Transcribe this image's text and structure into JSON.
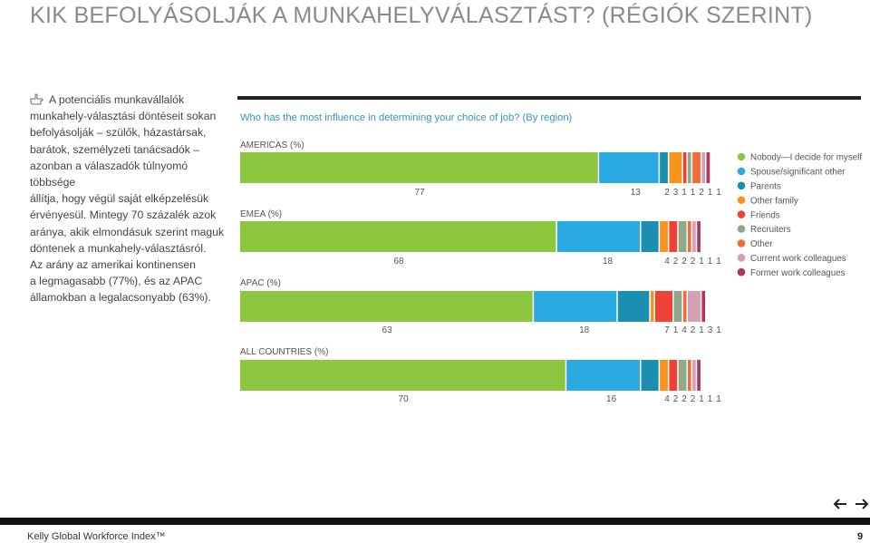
{
  "page": {
    "title": "KIK BEFOLYÁSOLJÁK A MUNKAHELYVÁLASZTÁST? (RÉGIÓK SZERINT)",
    "intro_lines": [
      "A potenciális munkavállalók",
      "munkahely-választási döntéseit sokan",
      "befolyásolják – szülők, házastársak,",
      "barátok, személyzeti tanácsadók –",
      "azonban a válaszadók túlnyomó többsége",
      "állítja, hogy végül saját elképzelésük",
      "érvényesül. Mintegy 70 százalék azok",
      "aránya, akik elmondásuk szerint maguk",
      "döntenek a munkahely-választásról.",
      "Az arány az amerikai kontinensen",
      "a legmagasabb (77%), és az APAC",
      "államokban a legalacsonyabb (63%)."
    ],
    "hand_icon": "pointing-hand-icon"
  },
  "footer": {
    "brand": "Kelly Global Workforce Index™",
    "page_number": "9",
    "prev_icon": "arrow-left-icon",
    "next_icon": "arrow-right-icon"
  },
  "chart_data": {
    "type": "bar",
    "orientation": "horizontal-stacked",
    "title": "Who has the most influence in determining your choice of job? (By region)",
    "title_color": "#3a8fc8",
    "categories": [
      "AMERICAS (%)",
      "EMEA (%)",
      "APAC (%)",
      "ALL COUNTRIES (%)"
    ],
    "series": [
      {
        "name": "Nobody—I decide for myself",
        "color": "#8dc63f",
        "values": [
          77,
          68,
          63,
          70
        ]
      },
      {
        "name": "Spouse/significant other",
        "color": "#29abe2",
        "values": [
          13,
          18,
          18,
          16
        ]
      },
      {
        "name": "Parents",
        "color": "#1b8fb0",
        "values": [
          2,
          4,
          7,
          4
        ]
      },
      {
        "name": "Other family",
        "color": "#f7941d",
        "values": [
          3,
          2,
          1,
          2
        ]
      },
      {
        "name": "Friends",
        "color": "#ef4136",
        "values": [
          1,
          2,
          4,
          2
        ]
      },
      {
        "name": "Recruiters",
        "color": "#8fa88c",
        "values": [
          1,
          2,
          2,
          2
        ]
      },
      {
        "name": "Other",
        "color": "#f26b3a",
        "values": [
          2,
          1,
          1,
          1
        ]
      },
      {
        "name": "Current work colleagues",
        "color": "#d4a0b4",
        "values": [
          1,
          1,
          3,
          1
        ]
      },
      {
        "name": "Former work colleagues",
        "color": "#b5335a",
        "values": [
          1,
          1,
          1,
          1
        ]
      }
    ],
    "value_labels": [
      [
        "77",
        "13",
        "2",
        "3",
        "1",
        "1",
        "2",
        "1",
        "1"
      ],
      [
        "68",
        "18",
        "4",
        "2",
        "2",
        "2",
        "1",
        "1",
        "1"
      ],
      [
        "63",
        "18",
        "7",
        "1",
        "4",
        "2",
        "1",
        "3",
        "1"
      ],
      [
        "70",
        "16",
        "4",
        "2",
        "2",
        "2",
        "1",
        "1",
        "1"
      ]
    ],
    "xlim": [
      0,
      103
    ],
    "legend_position": "right",
    "grid": false
  }
}
